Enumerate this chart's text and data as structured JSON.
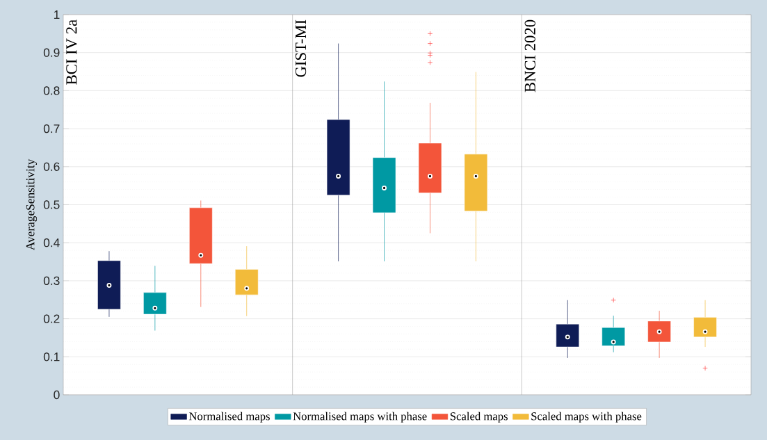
{
  "chart_data": {
    "type": "box",
    "ylabel": "AverageSensitivity",
    "categories": [
      null,
      null,
      null
    ],
    "annotations": [
      "BCI IV 2a",
      "GIST-MI",
      "BNCI 2020"
    ],
    "ylim": [
      0,
      1
    ],
    "yticks": [
      0,
      0.1,
      0.2,
      0.3,
      0.4,
      0.5,
      0.6,
      0.7,
      0.8,
      0.9,
      1
    ],
    "grid": "y",
    "legend": "bottom",
    "series": [
      {
        "name": "Normalised maps",
        "color": "#0f1c56",
        "boxes": [
          {
            "low": 0.205,
            "q1": 0.225,
            "median": 0.288,
            "q3": 0.353,
            "high": 0.378
          },
          {
            "low": 0.351,
            "q1": 0.525,
            "median": 0.575,
            "q3": 0.724,
            "high": 0.924
          },
          {
            "low": 0.097,
            "q1": 0.126,
            "median": 0.152,
            "q3": 0.186,
            "high": 0.249
          }
        ]
      },
      {
        "name": "Normalised maps with phase",
        "color": "#0099a3",
        "boxes": [
          {
            "low": 0.169,
            "q1": 0.212,
            "median": 0.228,
            "q3": 0.269,
            "high": 0.339
          },
          {
            "low": 0.351,
            "q1": 0.479,
            "median": 0.544,
            "q3": 0.624,
            "high": 0.824
          },
          {
            "low": 0.112,
            "q1": 0.129,
            "median": 0.139,
            "q3": 0.177,
            "high": 0.208,
            "outliers": [
              0.249
            ]
          }
        ]
      },
      {
        "name": "Scaled maps",
        "color": "#f3553a",
        "boxes": [
          {
            "low": 0.231,
            "q1": 0.345,
            "median": 0.367,
            "q3": 0.492,
            "high": 0.511
          },
          {
            "low": 0.425,
            "q1": 0.531,
            "median": 0.575,
            "q3": 0.662,
            "high": 0.768,
            "outliers": [
              0.874,
              0.893,
              0.899,
              0.924,
              0.95
            ]
          },
          {
            "low": 0.097,
            "q1": 0.139,
            "median": 0.166,
            "q3": 0.194,
            "high": 0.221
          }
        ]
      },
      {
        "name": "Scaled maps with phase",
        "color": "#f2bb3a",
        "boxes": [
          {
            "low": 0.207,
            "q1": 0.263,
            "median": 0.28,
            "q3": 0.33,
            "high": 0.391
          },
          {
            "low": 0.351,
            "q1": 0.483,
            "median": 0.575,
            "q3": 0.633,
            "high": 0.849
          },
          {
            "low": 0.126,
            "q1": 0.152,
            "median": 0.166,
            "q3": 0.204,
            "high": 0.249,
            "outliers": [
              0.07
            ]
          }
        ]
      }
    ]
  }
}
